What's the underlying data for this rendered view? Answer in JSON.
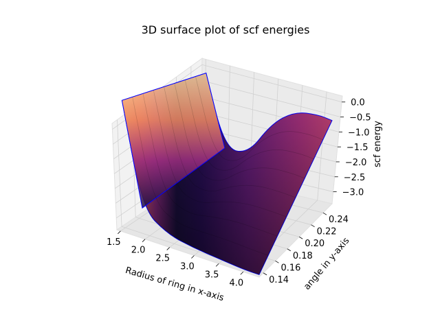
{
  "chart_data": {
    "type": "surface",
    "title": "3D surface plot of scf energies",
    "xlabel": "Radius of ring in x-axis",
    "ylabel": "angle in y-axis",
    "zlabel": "scf energy",
    "x_ticks": [
      "1.5",
      "2.0",
      "2.5",
      "3.0",
      "3.5",
      "4.0"
    ],
    "y_ticks": [
      "0.14",
      "0.16",
      "0.18",
      "0.20",
      "0.22",
      "0.24"
    ],
    "z_ticks": [
      "0.0",
      "−0.5",
      "−1.0",
      "−1.5",
      "−2.0",
      "−2.5",
      "−3.0"
    ],
    "x_range": [
      1.5,
      4.3
    ],
    "y_range": [
      0.13,
      0.255
    ],
    "z_range": [
      -3.2,
      0.2
    ],
    "colormap": "magma",
    "edge_color": "#0000ff",
    "grid": true,
    "surface_samples": {
      "x": [
        1.6,
        2.0,
        2.5,
        3.0,
        3.5,
        4.0,
        4.3
      ],
      "y_front_z": [
        -0.6,
        -2.6,
        -2.95,
        -3.05,
        -3.1,
        -3.15,
        -3.15
      ],
      "y_back_z": [
        -1.2,
        -2.6,
        -2.6,
        -1.9,
        -1.55,
        -1.5,
        -1.55
      ]
    }
  }
}
